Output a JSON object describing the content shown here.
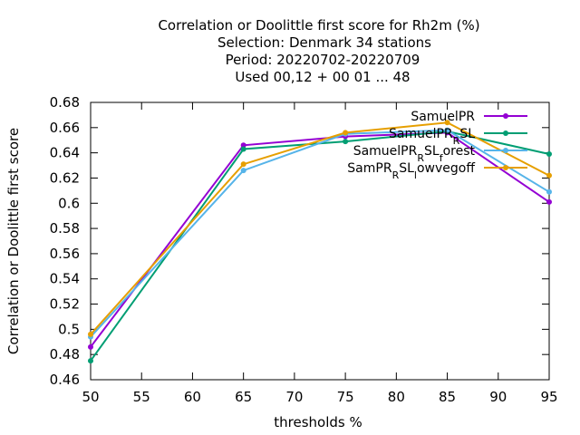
{
  "chart_data": {
    "type": "line",
    "title": [
      "Correlation or Doolittle first score  for Rh2m (%)",
      "Selection: Denmark     34 stations",
      "Period: 20220702-20220709",
      "Used  00,12  + 00 01 ... 48"
    ],
    "xlabel": "thresholds %",
    "ylabel": "Correlation or Doolittle first score",
    "xlim": [
      50,
      95
    ],
    "ylim": [
      0.46,
      0.68
    ],
    "xticks": [
      50,
      55,
      60,
      65,
      70,
      75,
      80,
      85,
      90,
      95
    ],
    "yticks": [
      0.46,
      0.48,
      0.5,
      0.52,
      0.54,
      0.56,
      0.58,
      0.6,
      0.62,
      0.64,
      0.66,
      0.68
    ],
    "ytick_labels": [
      "0.46",
      "0.48",
      "0.5",
      "0.52",
      "0.54",
      "0.56",
      "0.58",
      "0.6",
      "0.62",
      "0.64",
      "0.66",
      "0.68"
    ],
    "x": [
      50,
      65,
      75,
      85,
      95
    ],
    "grid": false,
    "legend_position": "top-right",
    "series": [
      {
        "name": "SamuelPR",
        "color": "#9400d3",
        "values": [
          0.486,
          0.646,
          0.653,
          0.656,
          0.601
        ]
      },
      {
        "name": "SamuelPR_RSL",
        "color": "#009e73",
        "values": [
          0.475,
          0.643,
          0.649,
          0.657,
          0.639
        ]
      },
      {
        "name": "SamuelPR_RSL_forest",
        "color": "#56b4e9",
        "values": [
          0.494,
          0.626,
          0.655,
          0.658,
          0.609
        ]
      },
      {
        "name": "SamPR_RSL_lowvegoff",
        "color": "#e69f00",
        "values": [
          0.496,
          0.631,
          0.656,
          0.664,
          0.622
        ]
      }
    ]
  }
}
